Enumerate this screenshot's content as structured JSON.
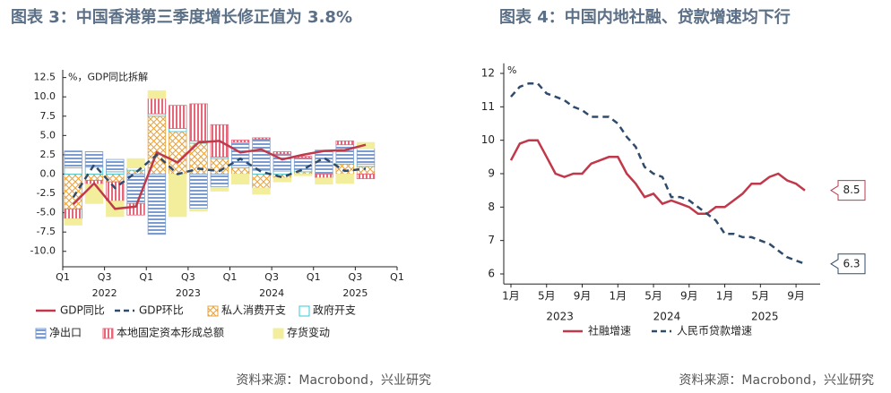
{
  "chart_data": [
    {
      "type": "bar",
      "stacked": true,
      "title": "图表 3：中国香港第三季度增长修正值为 3.8%",
      "unit_label": "%，GDP同比拆解",
      "source": "资料来源：Macrobond，兴业研究",
      "categories": [
        "Q1",
        null,
        "Q3",
        null,
        "Q1",
        null,
        "Q3",
        null,
        "Q1",
        null,
        "Q3",
        null,
        "Q1",
        null,
        "Q3",
        null,
        "Q1"
      ],
      "years": [
        "2022",
        "2023",
        "2024",
        "2025"
      ],
      "ylim": [
        -12,
        13.5
      ],
      "yticks": [
        {
          "value": -10,
          "label": "-10.0"
        },
        -7.5,
        {
          "value": -5,
          "label": "-5.0"
        },
        -2.5,
        {
          "value": 0,
          "label": "0.0"
        },
        2.5,
        {
          "value": 5,
          "label": "5.0"
        },
        7.5,
        {
          "value": 10,
          "label": "10.0"
        },
        12.5
      ],
      "grid": false,
      "series": [
        {
          "name": "GDP同比",
          "type": "line",
          "color": "#c0394b",
          "dash": false,
          "values": [
            -3.9,
            -1.2,
            -4.5,
            -4.2,
            2.8,
            1.5,
            4.1,
            4.3,
            2.8,
            3.2,
            1.9,
            2.5,
            3.0,
            3.1,
            3.8,
            null,
            null
          ]
        },
        {
          "name": "GDP环比",
          "type": "line",
          "color": "#2f4b6b",
          "dash": true,
          "values": [
            -3.0,
            1.2,
            -1.8,
            0.2,
            2.5,
            0.0,
            0.7,
            0.4,
            2.0,
            0.3,
            -0.4,
            0.6,
            2.1,
            0.4,
            0.7,
            null,
            null
          ]
        },
        {
          "name": "私人消费开支",
          "type": "bar",
          "color": "#e8a33d",
          "pattern": "crosshatch",
          "values": [
            -4.5,
            -0.8,
            -1.0,
            0.5,
            7.5,
            5.5,
            4.0,
            2.0,
            0.8,
            -1.8,
            -0.5,
            0.3,
            0.0,
            1.3,
            1.0,
            null,
            null
          ]
        },
        {
          "name": "政府开支",
          "type": "bar",
          "color": "#3cc4d4",
          "pattern": "outline",
          "values": [
            0.8,
            0.9,
            0.3,
            0.3,
            0.3,
            0.4,
            0.3,
            0.2,
            0.3,
            0.5,
            0.4,
            0.3,
            0.1,
            0.2,
            0.3,
            null,
            null
          ]
        },
        {
          "name": "净出口",
          "type": "bar",
          "color": "#7a9cd0",
          "pattern": "hstripes",
          "values": [
            2.2,
            2.0,
            1.6,
            -3.8,
            -7.8,
            0.0,
            -4.5,
            -1.7,
            3.0,
            4.0,
            2.2,
            1.5,
            3.0,
            2.3,
            2.0,
            null,
            null
          ]
        },
        {
          "name": "本地固定资本形成总额",
          "type": "bar",
          "color": "#e8667a",
          "pattern": "vstripes",
          "values": [
            -1.3,
            -0.5,
            -2.5,
            -1.5,
            2.0,
            3.0,
            4.8,
            4.2,
            0.3,
            0.2,
            0.3,
            0.2,
            -0.5,
            0.5,
            -0.6,
            null,
            null
          ]
        },
        {
          "name": "存货变动",
          "type": "bar",
          "color": "#f2ee9c",
          "pattern": "solid",
          "values": [
            -0.8,
            -2.5,
            -2.0,
            1.2,
            1.0,
            -5.5,
            -0.3,
            -0.5,
            -1.3,
            -0.8,
            -0.5,
            -0.2,
            -0.8,
            -1.2,
            0.8,
            null,
            null
          ]
        }
      ]
    },
    {
      "type": "line",
      "title": "图表 4：中国内地社融、贷款增速均下行",
      "unit_label": "%",
      "source": "资料来源：Macrobond，兴业研究",
      "categories": [
        "1月",
        null,
        null,
        null,
        "5月",
        null,
        null,
        null,
        "9月",
        null,
        null,
        null,
        "1月",
        null,
        null,
        null,
        "5月",
        null,
        null,
        null,
        "9月",
        null,
        null,
        null,
        "1月",
        null,
        null,
        null,
        "5月",
        null,
        null,
        null,
        "9月",
        null
      ],
      "years": [
        "2023",
        "2024",
        "2025"
      ],
      "ylim": [
        5.7,
        12.3
      ],
      "yticks": [
        6,
        7,
        8,
        9,
        10,
        11,
        12
      ],
      "grid": false,
      "series": [
        {
          "name": "社融增速",
          "color": "#c0394b",
          "dash": false,
          "end_label": true,
          "values": [
            9.4,
            9.9,
            10.0,
            10.0,
            9.5,
            9.0,
            8.9,
            9.0,
            9.0,
            9.3,
            9.4,
            9.5,
            9.5,
            9.0,
            8.7,
            8.3,
            8.4,
            8.1,
            8.2,
            8.1,
            8.0,
            7.8,
            7.8,
            8.0,
            8.0,
            8.2,
            8.4,
            8.7,
            8.7,
            8.9,
            9.0,
            8.8,
            8.7,
            8.5
          ]
        },
        {
          "name": "人民币贷款增速",
          "color": "#2f4b6b",
          "dash": true,
          "end_label": true,
          "values": [
            11.3,
            11.6,
            11.7,
            11.7,
            11.4,
            11.3,
            11.2,
            11.0,
            10.9,
            10.7,
            10.7,
            10.7,
            10.5,
            10.1,
            9.8,
            9.2,
            9.0,
            8.9,
            8.3,
            8.3,
            8.2,
            8.0,
            7.8,
            7.6,
            7.2,
            7.2,
            7.1,
            7.1,
            7.0,
            6.9,
            6.7,
            6.5,
            6.4,
            6.3
          ]
        }
      ]
    }
  ]
}
